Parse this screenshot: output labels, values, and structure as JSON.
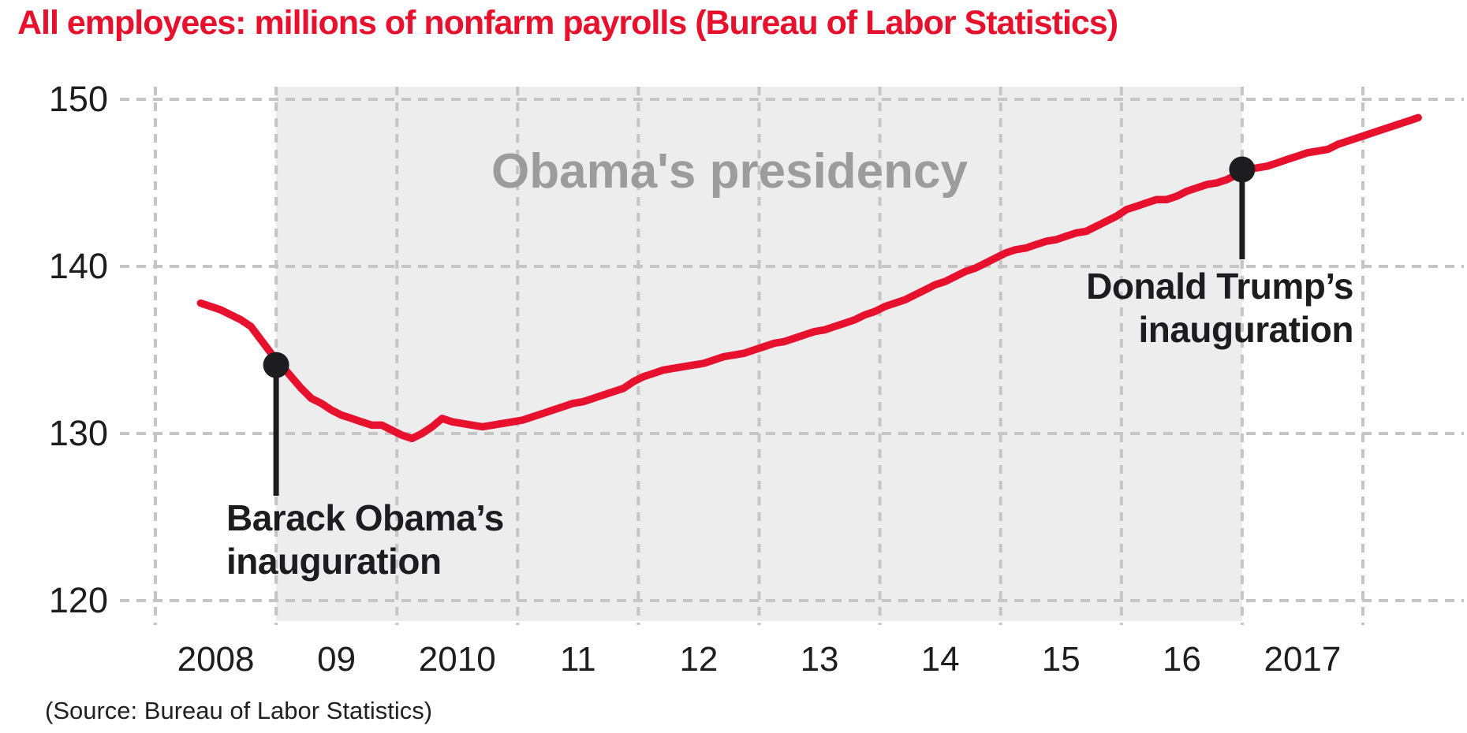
{
  "title": "All employees: millions of nonfarm payrolls (Bureau of Labor Statistics)",
  "source_note": "(Source: Bureau of Labor Statistics)",
  "colors": {
    "title_red": "#e8112d",
    "line_red": "#e8112d",
    "shading_gray": "#ededed",
    "gridline_gray": "#c5c5c5",
    "watermark_gray": "#9c9c9c",
    "ink_black": "#1d1d1f",
    "background": "#ffffff"
  },
  "chart_data": {
    "type": "line",
    "title": "All employees: millions of nonfarm payrolls (Bureau of Labor Statistics)",
    "xlabel": "",
    "ylabel": "",
    "grid": "dashed gray; horizontal at y ticks, vertical at each January 2008-2018",
    "legend": "none",
    "ylim": [
      118.8,
      150.8
    ],
    "xlim_years": [
      2007.69,
      2018.83
    ],
    "y_axis": {
      "ticks": [
        150,
        140,
        130,
        120
      ],
      "tick_labels": [
        "150",
        "140",
        "130",
        "120"
      ]
    },
    "x_axis": {
      "gridline_years": [
        2008,
        2009,
        2010,
        2011,
        2012,
        2013,
        2014,
        2015,
        2016,
        2017,
        2018
      ],
      "ticks": [
        {
          "label": "2008",
          "year": 2008.5
        },
        {
          "label": "09",
          "year": 2009.5
        },
        {
          "label": "2010",
          "year": 2010.5
        },
        {
          "label": "11",
          "year": 2011.5
        },
        {
          "label": "12",
          "year": 2012.5
        },
        {
          "label": "13",
          "year": 2013.5
        },
        {
          "label": "14",
          "year": 2014.5
        },
        {
          "label": "15",
          "year": 2015.5
        },
        {
          "label": "16",
          "year": 2016.5
        },
        {
          "label": "2017",
          "year": 2017.5
        }
      ]
    },
    "shaded_region": {
      "label": "Obama's presidency",
      "from_year": 2009.0,
      "to_year": 2017.0
    },
    "annotations": [
      {
        "id": "obama",
        "label": "Barack Obama's inauguration",
        "label_lines": [
          "Barack Obama’s",
          "inauguration"
        ],
        "date": "2009-01",
        "year": 2009.0,
        "value": 134.1
      },
      {
        "id": "trump",
        "label": "Donald Trump's inauguration",
        "label_lines": [
          "Donald Trump’s",
          "inauguration"
        ],
        "date": "2017-01",
        "year": 2017.0,
        "value": 145.8
      }
    ],
    "series": [
      {
        "name": "All employees: total nonfarm payrolls (millions)",
        "frequency": "monthly",
        "start_year": 2008,
        "start_month": 5,
        "end_year": 2018,
        "end_month": 6,
        "values": [
          137.8,
          137.6,
          137.4,
          137.1,
          136.8,
          136.4,
          135.6,
          134.8,
          134.1,
          133.4,
          132.7,
          132.1,
          131.8,
          131.4,
          131.1,
          130.9,
          130.7,
          130.5,
          130.5,
          130.2,
          129.9,
          129.7,
          130.0,
          130.4,
          130.9,
          130.7,
          130.6,
          130.5,
          130.4,
          130.5,
          130.6,
          130.7,
          130.8,
          131.0,
          131.2,
          131.4,
          131.6,
          131.8,
          131.9,
          132.1,
          132.3,
          132.5,
          132.7,
          133.1,
          133.4,
          133.6,
          133.8,
          133.9,
          134.0,
          134.1,
          134.2,
          134.4,
          134.6,
          134.7,
          134.8,
          135.0,
          135.2,
          135.4,
          135.5,
          135.7,
          135.9,
          136.1,
          136.2,
          136.4,
          136.6,
          136.8,
          137.1,
          137.3,
          137.6,
          137.8,
          138.0,
          138.3,
          138.6,
          138.9,
          139.1,
          139.4,
          139.7,
          139.9,
          140.2,
          140.5,
          140.8,
          141.0,
          141.1,
          141.3,
          141.5,
          141.6,
          141.8,
          142.0,
          142.1,
          142.4,
          142.7,
          143.0,
          143.4,
          143.6,
          143.8,
          144.0,
          144.0,
          144.2,
          144.5,
          144.7,
          144.9,
          145.0,
          145.2,
          145.5,
          145.8,
          145.9,
          146.0,
          146.2,
          146.4,
          146.6,
          146.8,
          146.9,
          147.0,
          147.3,
          147.5,
          147.7,
          147.9,
          148.1,
          148.3,
          148.5,
          148.7,
          148.9
        ]
      }
    ]
  }
}
